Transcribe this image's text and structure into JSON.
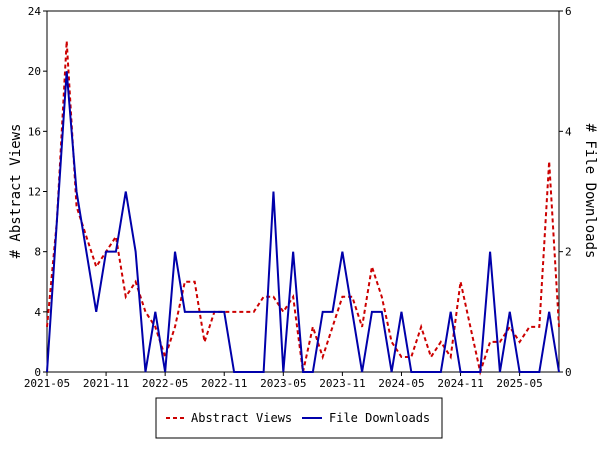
{
  "chart_data": {
    "type": "line",
    "title": "",
    "x_tick_labels": [
      "2021-05",
      "2021-11",
      "2022-05",
      "2022-11",
      "2023-05",
      "2023-11",
      "2024-05",
      "2024-11",
      "2025-05"
    ],
    "ylabel_left": "# Abstract Views",
    "ylabel_right": "# File Downloads",
    "ylim_left": [
      0,
      24
    ],
    "ylim_right": [
      0,
      6
    ],
    "y_ticks_left": [
      "0",
      "4",
      "8",
      "12",
      "16",
      "20",
      "24"
    ],
    "y_ticks_right": [
      "0",
      "2",
      "4",
      "6"
    ],
    "grid": false,
    "legend_position": "bottom",
    "series": [
      {
        "name": "Abstract Views",
        "axis": "left",
        "color": "#cc0000",
        "style": "dashed",
        "values": [
          3,
          10,
          22,
          11,
          9,
          7,
          8,
          9,
          5,
          6,
          4,
          3,
          1,
          3,
          6,
          6,
          2,
          4,
          4,
          4,
          4,
          4,
          5,
          5,
          4,
          5,
          0,
          3,
          1,
          3,
          5,
          5,
          3,
          7,
          5,
          2,
          1,
          1,
          3,
          1,
          2,
          1,
          6,
          3,
          0,
          2,
          2,
          3,
          2,
          3,
          3,
          14,
          3
        ]
      },
      {
        "name": "File Downloads",
        "axis": "right",
        "color": "#0000aa",
        "style": "solid",
        "values": [
          0,
          2.5,
          5,
          3,
          2,
          1,
          2,
          2,
          3,
          2,
          0,
          1,
          0,
          2,
          1,
          1,
          1,
          1,
          1,
          0,
          0,
          0,
          0,
          3,
          0,
          2,
          0,
          0,
          1,
          1,
          2,
          1,
          0,
          1,
          1,
          0,
          1,
          0,
          0,
          0,
          0,
          1,
          0,
          0,
          0,
          2,
          0,
          1,
          0,
          0,
          0,
          1,
          0
        ]
      }
    ]
  }
}
